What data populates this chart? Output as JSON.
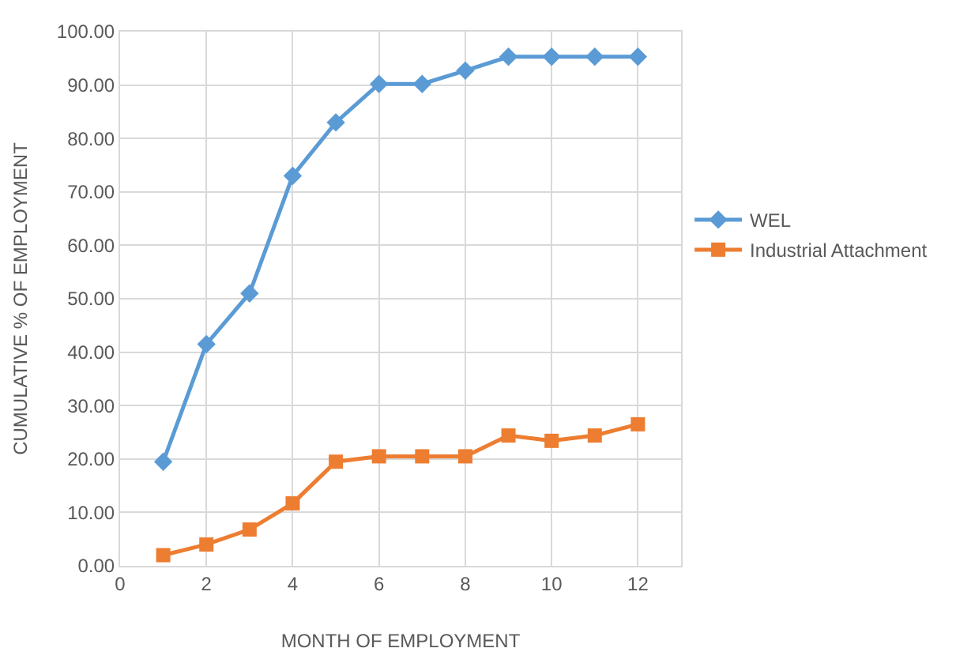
{
  "chart_data": {
    "type": "line",
    "xlabel": "MONTH OF EMPLOYMENT",
    "ylabel": "CUMULATIVE % OF EMPLOYMENT",
    "x": [
      1,
      2,
      3,
      4,
      5,
      6,
      7,
      8,
      9,
      10,
      11,
      12
    ],
    "series": [
      {
        "name": "WEL",
        "color": "#5b9bd5",
        "marker": "diamond",
        "values": [
          19.5,
          41.5,
          51,
          73,
          83,
          90.2,
          90.2,
          92.7,
          95.3,
          95.3,
          95.3,
          95.3
        ]
      },
      {
        "name": "Industrial Attachment",
        "color": "#ed7d31",
        "marker": "square",
        "values": [
          2,
          4,
          6.8,
          11.7,
          19.5,
          20.5,
          20.5,
          20.5,
          24.4,
          23.4,
          24.4,
          26.5
        ]
      }
    ],
    "xlim": [
      0,
      13
    ],
    "xticks": [
      0,
      2,
      4,
      6,
      8,
      10,
      12
    ],
    "ylim": [
      0,
      100
    ],
    "yticks": [
      {
        "value": 0,
        "label": "0.00"
      },
      {
        "value": 10,
        "label": "10.00"
      },
      {
        "value": 20,
        "label": "20.00"
      },
      {
        "value": 30,
        "label": "30.00"
      },
      {
        "value": 40,
        "label": "40.00"
      },
      {
        "value": 50,
        "label": "50.00"
      },
      {
        "value": 60,
        "label": "60.00"
      },
      {
        "value": 70,
        "label": "70.00"
      },
      {
        "value": 80,
        "label": "80.00"
      },
      {
        "value": 90,
        "label": "90.00"
      },
      {
        "value": 100,
        "label": "100.00"
      }
    ],
    "grid": true,
    "legend": "right",
    "line_style": "solid"
  }
}
